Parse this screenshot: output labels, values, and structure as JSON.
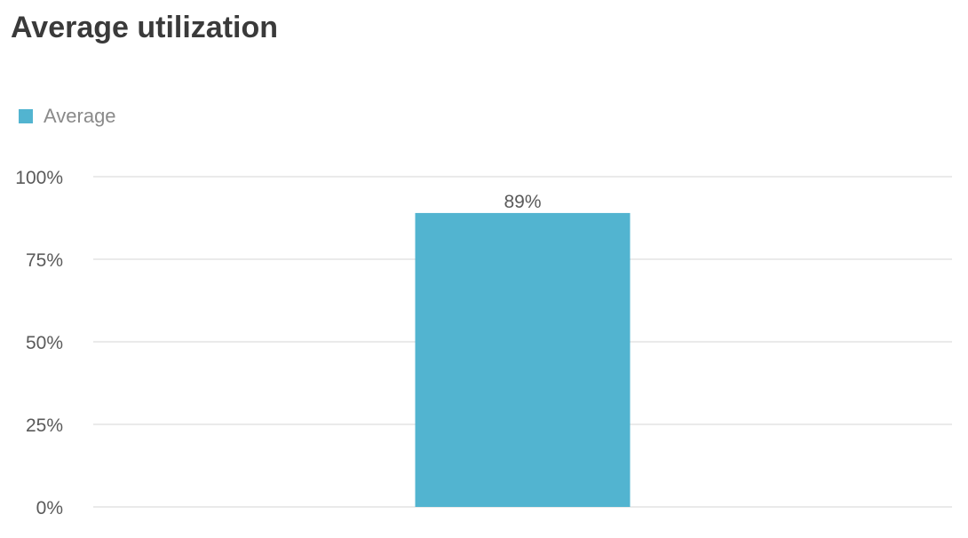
{
  "chart_data": {
    "type": "bar",
    "title": "Average utilization",
    "categories": [
      ""
    ],
    "series": [
      {
        "name": "Average",
        "values": [
          89
        ],
        "color": "#52b4d0",
        "data_labels": [
          "89%"
        ]
      }
    ],
    "ylim": [
      0,
      100
    ],
    "y_ticks": [
      0,
      25,
      50,
      75,
      100
    ],
    "y_tick_labels": [
      "0%",
      "25%",
      "50%",
      "75%",
      "100%"
    ],
    "grid": true,
    "gridline_color": "#e3e3e3",
    "legend_position": "top-left"
  }
}
